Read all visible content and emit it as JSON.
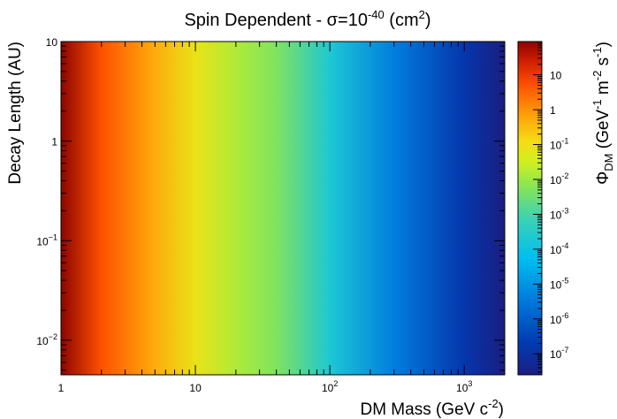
{
  "chart_data": {
    "type": "heatmap",
    "title": {
      "base": "Spin Dependent - σ=10",
      "exp": "-40",
      "mid": " (cm",
      "sup": "2",
      "end": ")"
    },
    "xlabel": {
      "base": "DM Mass (GeV c",
      "sup": "-2",
      "end": ")"
    },
    "ylabel": "Decay Length (AU)",
    "zlabel": {
      "sym": "Φ",
      "sub": "DM",
      "open": " (GeV",
      "sup1": "-1",
      "m": " m",
      "sup2": "-2",
      "s": " s",
      "sup3": "-1",
      "close": ")"
    },
    "x_scale": "log",
    "y_scale": "log",
    "z_scale": "log",
    "xlim": [
      1,
      2000
    ],
    "ylim": [
      0.0045,
      10
    ],
    "zlim": [
      2.5e-08,
      90
    ],
    "x_ticks": [
      {
        "value": 1,
        "label": "1"
      },
      {
        "value": 10,
        "label": "10"
      },
      {
        "value": 100,
        "label": "10",
        "sup": "2"
      },
      {
        "value": 1000,
        "label": "10",
        "sup": "3"
      }
    ],
    "y_ticks": [
      {
        "value": 0.01,
        "label": "10",
        "sup": "−2"
      },
      {
        "value": 0.1,
        "label": "10",
        "sup": "−1"
      },
      {
        "value": 1,
        "label": "1"
      },
      {
        "value": 10,
        "label": "10"
      }
    ],
    "z_ticks": [
      {
        "value": 1e-07,
        "label": "10",
        "sup": "-7"
      },
      {
        "value": 1e-06,
        "label": "10",
        "sup": "-6"
      },
      {
        "value": 1e-05,
        "label": "10",
        "sup": "-5"
      },
      {
        "value": 0.0001,
        "label": "10",
        "sup": "-4"
      },
      {
        "value": 0.001,
        "label": "10",
        "sup": "-3"
      },
      {
        "value": 0.01,
        "label": "10",
        "sup": "-2"
      },
      {
        "value": 0.1,
        "label": "10",
        "sup": "-1"
      },
      {
        "value": 1,
        "label": "1"
      },
      {
        "value": 10,
        "label": "10"
      }
    ],
    "field_samples": {
      "mass": [
        1,
        2,
        5,
        10,
        20,
        40,
        100,
        300,
        1000,
        2000
      ],
      "flux": [
        90,
        5,
        0.5,
        0.08,
        0.015,
        0.005,
        0.0002,
        4e-06,
        1.5e-07,
        2.5e-08
      ]
    },
    "grid": false,
    "legend": "colorbar-right"
  }
}
